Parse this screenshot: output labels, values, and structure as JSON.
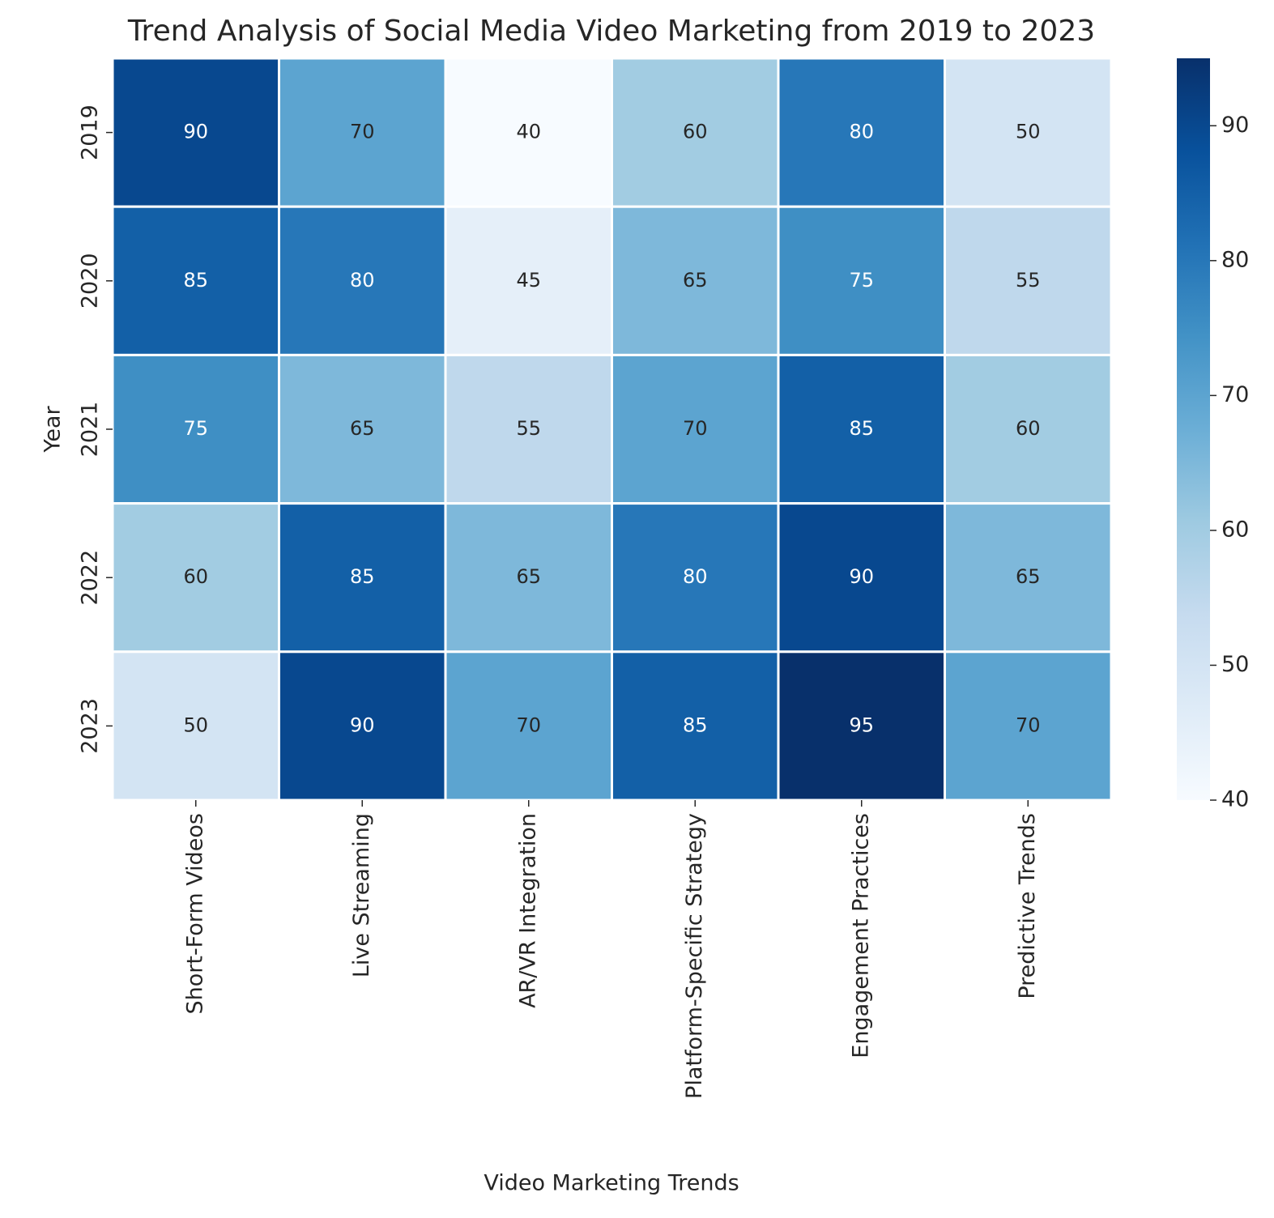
{
  "chart_data": {
    "type": "heatmap",
    "title": "Trend Analysis of Social Media Video Marketing from 2019 to 2023",
    "x_label": "Video Marketing Trends",
    "y_label": "Year",
    "categories": [
      "Short-Form Videos",
      "Live Streaming",
      "AR/VR Integration",
      "Platform-Specific Strategy",
      "Engagement Practices",
      "Predictive Trends"
    ],
    "rows": [
      "2019",
      "2020",
      "2021",
      "2022",
      "2023"
    ],
    "values": [
      [
        90,
        70,
        40,
        60,
        80,
        50
      ],
      [
        85,
        80,
        45,
        65,
        75,
        55
      ],
      [
        75,
        65,
        55,
        70,
        85,
        60
      ],
      [
        60,
        85,
        65,
        80,
        90,
        65
      ],
      [
        50,
        90,
        70,
        85,
        95,
        70
      ]
    ],
    "colormap": [
      "#f7fbff",
      "#deebf7",
      "#c6dbef",
      "#9ecae1",
      "#6baed6",
      "#4292c6",
      "#2171b5",
      "#08519c",
      "#08306b"
    ],
    "clim": [
      40,
      95
    ],
    "cticks": [
      40,
      50,
      60,
      70,
      80,
      90
    ]
  }
}
